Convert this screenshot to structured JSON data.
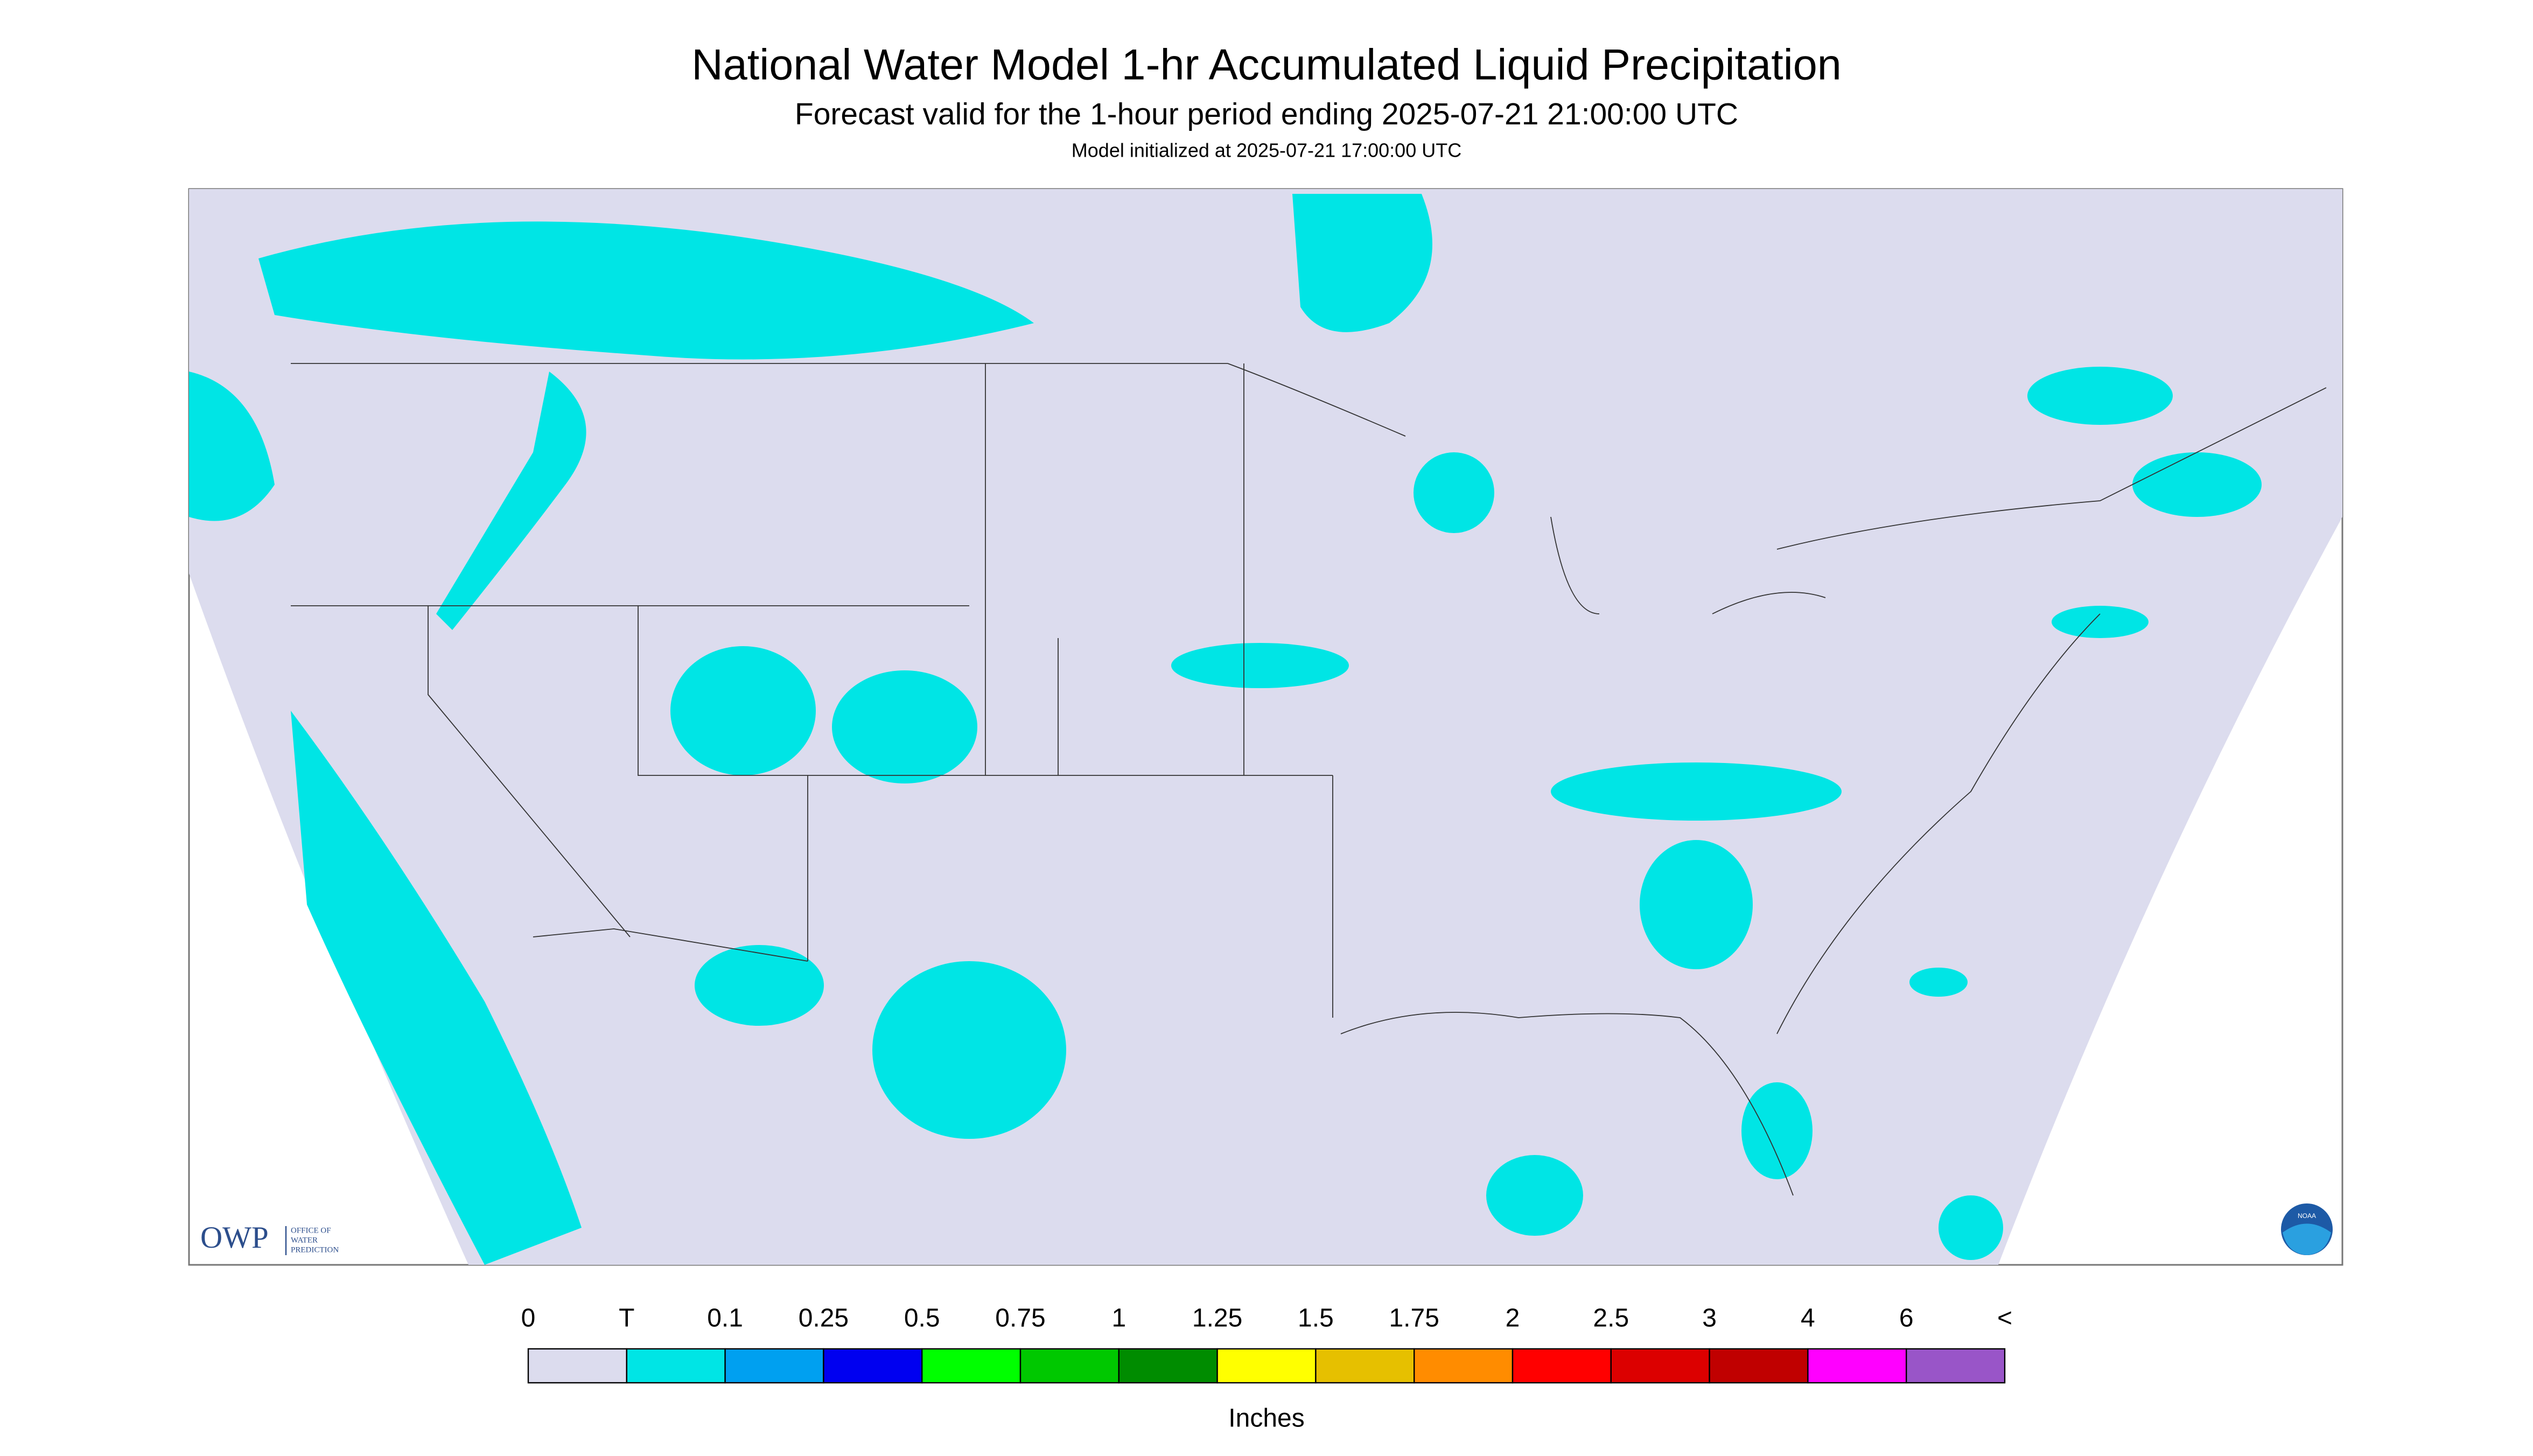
{
  "header": {
    "title": "National Water Model 1-hr Accumulated Liquid Precipitation",
    "subtitle": "Forecast valid for the 1-hour period ending 2025-07-21 21:00:00 UTC",
    "note": "Model initialized at 2025-07-21 17:00:00 UTC"
  },
  "logo": {
    "acronym": "OWP",
    "line1": "OFFICE OF",
    "line2": "WATER",
    "line3": "PREDICTION",
    "badge": "NOAA"
  },
  "legend": {
    "labels": [
      "0",
      "T",
      "0.1",
      "0.25",
      "0.5",
      "0.75",
      "1",
      "1.25",
      "1.5",
      "1.75",
      "2",
      "2.5",
      "3",
      "4",
      "6",
      "<"
    ],
    "colors": [
      "#dcdcee",
      "#00e5e5",
      "#00a0f0",
      "#0000f0",
      "#00ff00",
      "#00c800",
      "#008c00",
      "#ffff00",
      "#e6c000",
      "#ff8c00",
      "#ff0000",
      "#dc0000",
      "#c00000",
      "#ff00ff",
      "#9955c8"
    ],
    "units": "Inches"
  }
}
